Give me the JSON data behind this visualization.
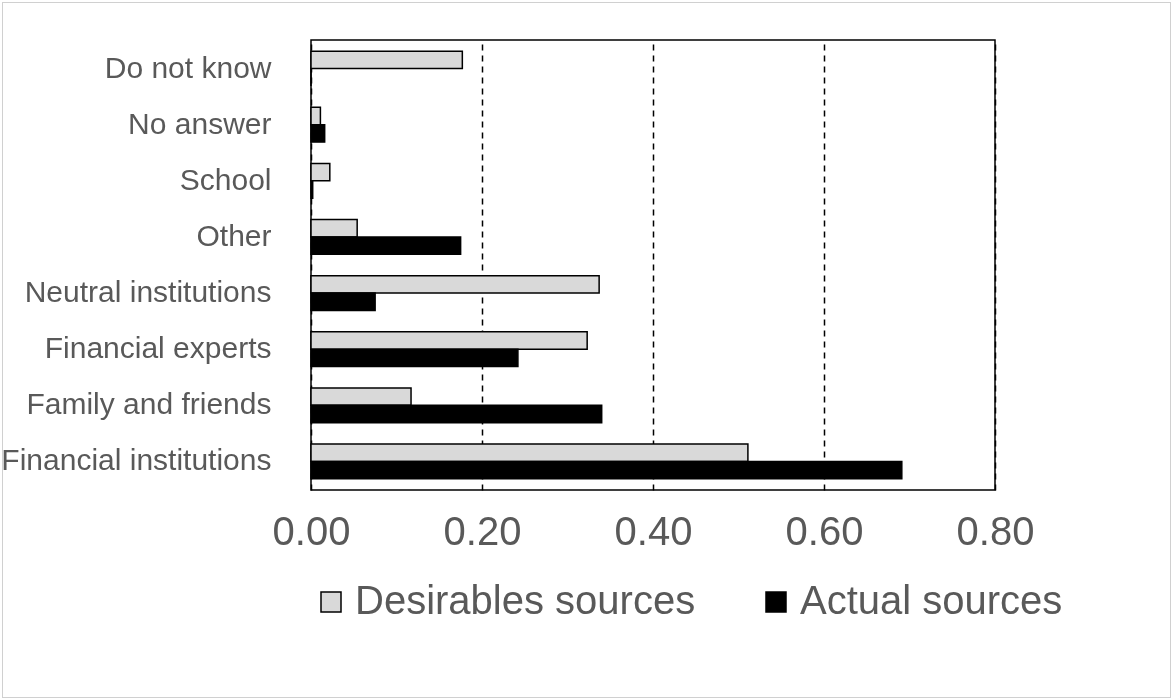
{
  "chart_data": {
    "type": "bar",
    "orientation": "horizontal",
    "categories": [
      "Do not know",
      "No answer",
      "School",
      "Other",
      "Neutral institutions",
      "Financial experts",
      "Family and friends",
      "Financial institutions"
    ],
    "series": [
      {
        "name": "Desirables sources",
        "color": "#d9d9d9",
        "values": [
          0.177,
          0.011,
          0.022,
          0.054,
          0.337,
          0.323,
          0.117,
          0.511
        ]
      },
      {
        "name": "Actual sources",
        "color": "#000000",
        "values": [
          0,
          0.016,
          0.002,
          0.175,
          0.075,
          0.242,
          0.34,
          0.691
        ]
      }
    ],
    "xlim": [
      0,
      0.8
    ],
    "xticks": [
      {
        "value": 0,
        "label": "0.00"
      },
      {
        "value": 0.2,
        "label": "0.20"
      },
      {
        "value": 0.4,
        "label": "0.40"
      },
      {
        "value": 0.6,
        "label": "0.60"
      },
      {
        "value": 0.8,
        "label": "0.80"
      }
    ],
    "grid": "x",
    "legend": "bottom"
  }
}
